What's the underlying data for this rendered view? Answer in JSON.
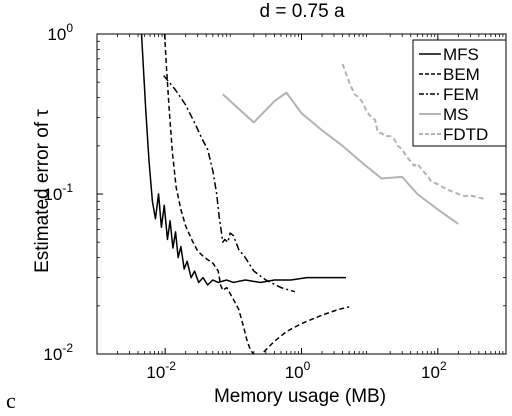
{
  "panel_label": "c",
  "chart_data": {
    "type": "line",
    "title": "d = 0.75 a",
    "xlabel": "Memory usage (MB)",
    "ylabel": "Estimated error of τ",
    "xscale": "log",
    "yscale": "log",
    "xlim": [
      0.001,
      1000
    ],
    "ylim": [
      0.01,
      1
    ],
    "xticks": [
      {
        "value": 0.01,
        "base": "10",
        "exp": "-2"
      },
      {
        "value": 1,
        "base": "10",
        "exp": "0"
      },
      {
        "value": 100,
        "base": "10",
        "exp": "2"
      }
    ],
    "yticks": [
      {
        "value": 0.01,
        "base": "10",
        "exp": "-2"
      },
      {
        "value": 0.1,
        "base": "10",
        "exp": "-1"
      },
      {
        "value": 1,
        "base": "10",
        "exp": "0"
      }
    ],
    "grid": false,
    "legend_position": "top-right",
    "series": [
      {
        "name": "MFS",
        "color": "#000000",
        "dash": "solid",
        "points": [
          [
            0.0045,
            1.0
          ],
          [
            0.0052,
            0.33
          ],
          [
            0.0058,
            0.16
          ],
          [
            0.0065,
            0.09
          ],
          [
            0.0072,
            0.07
          ],
          [
            0.008,
            0.1
          ],
          [
            0.0088,
            0.062
          ],
          [
            0.0097,
            0.085
          ],
          [
            0.0108,
            0.052
          ],
          [
            0.0118,
            0.068
          ],
          [
            0.013,
            0.046
          ],
          [
            0.0142,
            0.058
          ],
          [
            0.0155,
            0.04
          ],
          [
            0.017,
            0.047
          ],
          [
            0.019,
            0.034
          ],
          [
            0.021,
            0.038
          ],
          [
            0.024,
            0.03
          ],
          [
            0.027,
            0.033
          ],
          [
            0.031,
            0.028
          ],
          [
            0.036,
            0.03
          ],
          [
            0.042,
            0.027
          ],
          [
            0.05,
            0.029
          ],
          [
            0.06,
            0.028
          ],
          [
            0.08,
            0.029
          ],
          [
            0.1,
            0.028
          ],
          [
            0.15,
            0.029
          ],
          [
            0.25,
            0.028
          ],
          [
            0.4,
            0.029
          ],
          [
            0.7,
            0.029
          ],
          [
            1.2,
            0.03
          ],
          [
            2.5,
            0.03
          ],
          [
            4.5,
            0.03
          ]
        ]
      },
      {
        "name": "BEM",
        "color": "#000000",
        "dash": "dashed",
        "points": [
          [
            0.0098,
            1.0
          ],
          [
            0.0105,
            0.6
          ],
          [
            0.0115,
            0.33
          ],
          [
            0.0128,
            0.18
          ],
          [
            0.0145,
            0.11
          ],
          [
            0.017,
            0.08
          ],
          [
            0.02,
            0.063
          ],
          [
            0.025,
            0.051
          ],
          [
            0.03,
            0.044
          ],
          [
            0.038,
            0.04
          ],
          [
            0.05,
            0.037
          ],
          [
            0.06,
            0.033
          ],
          [
            0.065,
            0.027
          ],
          [
            0.07,
            0.025
          ],
          [
            0.08,
            0.026
          ],
          [
            0.1,
            0.022
          ],
          [
            0.12,
            0.019
          ],
          [
            0.14,
            0.015
          ],
          [
            0.16,
            0.012
          ],
          [
            0.18,
            0.0105
          ],
          [
            0.2,
            0.01
          ]
        ]
      },
      {
        "name": "BEM",
        "color": "#000000",
        "dash": "dashed",
        "points": [
          [
            0.28,
            0.0103
          ],
          [
            0.4,
            0.012
          ],
          [
            0.6,
            0.0138
          ],
          [
            1.0,
            0.0155
          ],
          [
            2.0,
            0.0175
          ],
          [
            3.5,
            0.019
          ],
          [
            5.0,
            0.0197
          ]
        ]
      },
      {
        "name": "FEM",
        "color": "#000000",
        "dash": "dashdot",
        "points": [
          [
            0.0095,
            0.55
          ],
          [
            0.014,
            0.45
          ],
          [
            0.02,
            0.36
          ],
          [
            0.028,
            0.27
          ],
          [
            0.035,
            0.22
          ],
          [
            0.042,
            0.19
          ],
          [
            0.05,
            0.14
          ],
          [
            0.057,
            0.1
          ],
          [
            0.062,
            0.072
          ],
          [
            0.066,
            0.06
          ],
          [
            0.07,
            0.05
          ],
          [
            0.075,
            0.052
          ],
          [
            0.083,
            0.05
          ],
          [
            0.09,
            0.057
          ],
          [
            0.1,
            0.055
          ],
          [
            0.12,
            0.045
          ],
          [
            0.15,
            0.04
          ],
          [
            0.2,
            0.033
          ],
          [
            0.3,
            0.029
          ],
          [
            0.5,
            0.026
          ],
          [
            0.8,
            0.0245
          ]
        ]
      },
      {
        "name": "MS",
        "color": "#b3b3b3",
        "dash": "solid",
        "points": [
          [
            0.07,
            0.42
          ],
          [
            0.2,
            0.28
          ],
          [
            0.4,
            0.38
          ],
          [
            0.6,
            0.43
          ],
          [
            1.0,
            0.32
          ],
          [
            2.0,
            0.25
          ],
          [
            4.0,
            0.2
          ],
          [
            8.0,
            0.155
          ],
          [
            15.0,
            0.125
          ],
          [
            30.0,
            0.128
          ],
          [
            50.0,
            0.1
          ],
          [
            100.0,
            0.08
          ],
          [
            200.0,
            0.065
          ]
        ]
      },
      {
        "name": "FDTD",
        "color": "#b3b3b3",
        "dash": "dashed",
        "points": [
          [
            4.0,
            0.65
          ],
          [
            5.0,
            0.5
          ],
          [
            6.0,
            0.42
          ],
          [
            7.0,
            0.4
          ],
          [
            8.0,
            0.37
          ],
          [
            9.0,
            0.33
          ],
          [
            10.0,
            0.31
          ],
          [
            11.0,
            0.3
          ],
          [
            12.0,
            0.29
          ],
          [
            13.0,
            0.25
          ],
          [
            14.0,
            0.24
          ],
          [
            15.0,
            0.24
          ],
          [
            17.0,
            0.23
          ],
          [
            20.0,
            0.23
          ],
          [
            23.0,
            0.22
          ],
          [
            26.0,
            0.2
          ],
          [
            30.0,
            0.19
          ],
          [
            35.0,
            0.17
          ],
          [
            40.0,
            0.16
          ],
          [
            45.0,
            0.15
          ],
          [
            50.0,
            0.155
          ],
          [
            60.0,
            0.14
          ],
          [
            70.0,
            0.13
          ],
          [
            80.0,
            0.12
          ],
          [
            100.0,
            0.115
          ],
          [
            120.0,
            0.11
          ],
          [
            150.0,
            0.105
          ],
          [
            200.0,
            0.1
          ],
          [
            250.0,
            0.097
          ],
          [
            300.0,
            0.098
          ],
          [
            400.0,
            0.095
          ],
          [
            500.0,
            0.093
          ]
        ]
      }
    ],
    "legend": [
      {
        "name": "MFS",
        "color": "#000000",
        "dash": "solid"
      },
      {
        "name": "BEM",
        "color": "#000000",
        "dash": "dashed"
      },
      {
        "name": "FEM",
        "color": "#000000",
        "dash": "dashdot"
      },
      {
        "name": "MS",
        "color": "#b3b3b3",
        "dash": "solid"
      },
      {
        "name": "FDTD",
        "color": "#b3b3b3",
        "dash": "dashed"
      }
    ]
  }
}
